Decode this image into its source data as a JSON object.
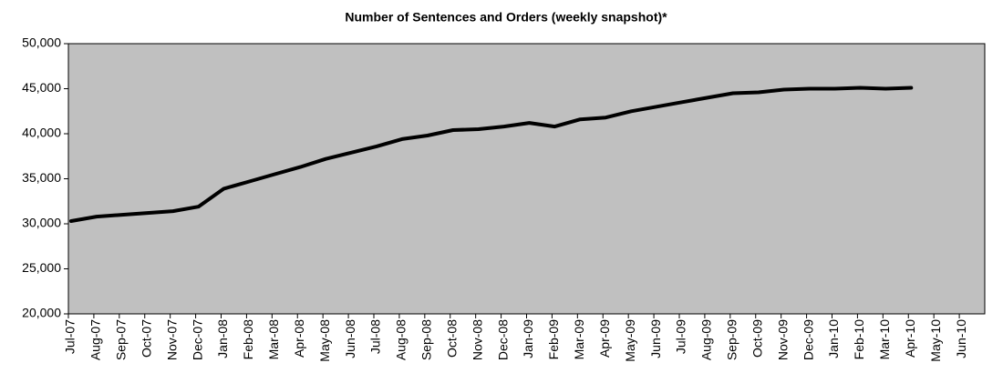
{
  "chart_data": {
    "type": "line",
    "title": "Number of Sentences and Orders (weekly snapshot)*",
    "categories": [
      "Jul-07",
      "Aug-07",
      "Sep-07",
      "Oct-07",
      "Nov-07",
      "Dec-07",
      "Jan-08",
      "Feb-08",
      "Mar-08",
      "Apr-08",
      "May-08",
      "Jun-08",
      "Jul-08",
      "Aug-08",
      "Sep-08",
      "Oct-08",
      "Nov-08",
      "Dec-08",
      "Jan-09",
      "Feb-09",
      "Mar-09",
      "Apr-09",
      "May-09",
      "Jun-09",
      "Jul-09",
      "Aug-09",
      "Sep-09",
      "Oct-09",
      "Nov-09",
      "Dec-09",
      "Jan-10",
      "Feb-10",
      "Mar-10",
      "Apr-10",
      "May-10",
      "Jun-10"
    ],
    "values": [
      30300,
      30800,
      31000,
      31200,
      31400,
      31900,
      33900,
      34700,
      35500,
      36300,
      37200,
      37900,
      38600,
      39400,
      39800,
      40400,
      40500,
      40800,
      41200,
      40800,
      41600,
      41800,
      42500,
      43000,
      43500,
      44000,
      44500,
      44600,
      44900,
      45000,
      45000,
      45100,
      45000,
      45100,
      null,
      null
    ],
    "color": "#000000",
    "ylim": [
      20000,
      50000
    ],
    "yticks": [
      {
        "value": 20000,
        "label": "20,000"
      },
      {
        "value": 25000,
        "label": "25,000"
      },
      {
        "value": 30000,
        "label": "30,000"
      },
      {
        "value": 35000,
        "label": "35,000"
      },
      {
        "value": 40000,
        "label": "40,000"
      },
      {
        "value": 45000,
        "label": "45,000"
      },
      {
        "value": 50000,
        "label": "50,000"
      }
    ],
    "grid": false
  }
}
